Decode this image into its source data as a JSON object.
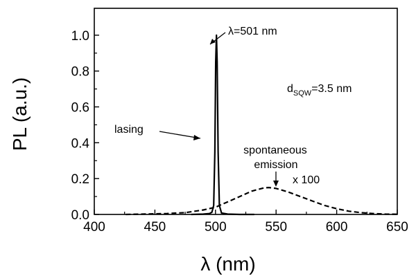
{
  "chart_data": {
    "type": "line",
    "xlabel": "λ (nm)",
    "ylabel": "PL (a.u.)",
    "xlim": [
      400,
      650
    ],
    "ylim": [
      0.0,
      1.15
    ],
    "xticks": [
      400,
      450,
      500,
      550,
      600,
      650
    ],
    "yticks": [
      0.0,
      0.2,
      0.4,
      0.6,
      0.8,
      1.0
    ],
    "xtick_labels": [
      "400",
      "450",
      "500",
      "550",
      "600",
      "650"
    ],
    "ytick_labels": [
      "0.0",
      "0.2",
      "0.4",
      "0.6",
      "0.8",
      "1.0"
    ],
    "grid": false,
    "series": [
      {
        "style": "solid",
        "color": "#000000",
        "x": [
          480,
          490,
          495,
          497,
          498.5,
          499.5,
          500.2,
          500.8,
          501.4,
          502.2,
          503.2,
          505,
          510,
          520,
          532
        ],
        "y": [
          0.0,
          0.002,
          0.005,
          0.012,
          0.05,
          0.35,
          0.85,
          1.0,
          0.85,
          0.35,
          0.05,
          0.008,
          0.002,
          0.0,
          0.0
        ]
      },
      {
        "style": "dashed",
        "color": "#000000",
        "x": [
          426,
          440,
          460,
          475,
          490,
          500,
          510,
          520,
          530,
          540,
          544,
          550,
          560,
          570,
          580,
          590,
          600,
          610,
          620,
          630,
          640,
          650
        ],
        "y": [
          0.0,
          0.002,
          0.005,
          0.01,
          0.025,
          0.04,
          0.07,
          0.1,
          0.13,
          0.148,
          0.15,
          0.145,
          0.125,
          0.1,
          0.075,
          0.05,
          0.032,
          0.018,
          0.01,
          0.005,
          0.002,
          0.001
        ]
      }
    ]
  },
  "annotations": {
    "peak_label": "λ=501 nm",
    "thickness_prefix": "d",
    "thickness_sub": "SQW",
    "thickness_value": "=3.5 nm",
    "lasing_label": "lasing",
    "spont_label_line1": "spontaneous",
    "spont_label_line2": "emission",
    "scale_label": "x 100"
  }
}
